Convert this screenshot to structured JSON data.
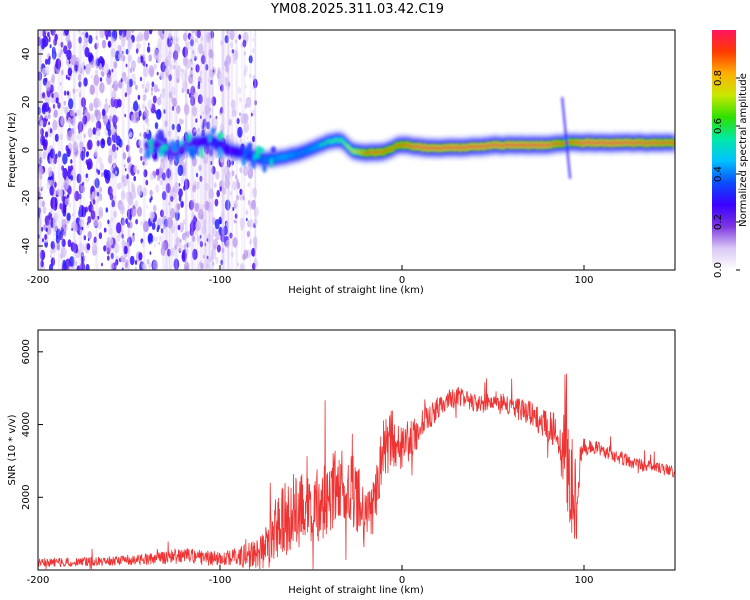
{
  "title": "YM08.2025.311.03.42.C19",
  "chart_data": [
    {
      "type": "heatmap",
      "xlabel": "Height of straight line (km)",
      "ylabel": "Frequency (Hz)",
      "xlim": [
        -200,
        150
      ],
      "ylim": [
        -50,
        50
      ],
      "x_ticks": [
        -200,
        -100,
        0,
        100
      ],
      "y_ticks": [
        -40,
        -20,
        0,
        20,
        40
      ],
      "colorbar": {
        "label": "Normalized spectral amplitude",
        "range": [
          0,
          1
        ],
        "ticks": [
          0.0,
          0.2,
          0.4,
          0.6,
          0.8
        ],
        "tick_labels": [
          "0.0",
          "0.2",
          "0.4",
          "0.6",
          "0.8"
        ],
        "colors": [
          "#ffffff",
          "#d9c8f5",
          "#7d35e0",
          "#3a00ff",
          "#0b4dff",
          "#00c2ff",
          "#00e8a8",
          "#2fe000",
          "#c8e800",
          "#ffb000",
          "#ff3a00",
          "#ff1560"
        ]
      },
      "noise_region_x": [
        -200,
        -80
      ],
      "ridge": {
        "x": [
          -135,
          -125,
          -115,
          -105,
          -95,
          -85,
          -75,
          -65,
          -55,
          -45,
          -38,
          -33,
          -28,
          -22,
          -17,
          -12,
          -7,
          -2,
          3,
          10,
          20,
          35,
          50,
          65,
          80,
          90,
          100,
          120,
          150
        ],
        "freq": [
          2,
          -1,
          3,
          4,
          0,
          -2,
          -4,
          -3,
          -1,
          2,
          4,
          4,
          0,
          -1,
          -1,
          -1,
          0,
          2,
          2,
          1,
          1,
          1,
          2,
          2,
          2,
          3,
          3,
          3,
          3
        ],
        "amplitude": [
          0.35,
          0.3,
          0.35,
          0.4,
          0.35,
          0.45,
          0.55,
          0.6,
          0.55,
          0.6,
          0.65,
          0.65,
          0.75,
          0.85,
          0.95,
          0.95,
          0.9,
          0.9,
          0.95,
          1.0,
          1.0,
          1.0,
          1.0,
          1.0,
          1.0,
          0.9,
          1.0,
          1.0,
          0.95
        ]
      },
      "spike_x": 88,
      "spike_freq_range": [
        -12,
        22
      ]
    },
    {
      "type": "line",
      "xlabel": "Height of straight line (km)",
      "ylabel": "SNR (10 * v/v)",
      "xlim": [
        -200,
        150
      ],
      "ylim": [
        0,
        6600
      ],
      "x_ticks": [
        -200,
        -100,
        0,
        100
      ],
      "y_ticks": [
        2000,
        4000,
        6000
      ],
      "color": "#ee3333",
      "series": [
        {
          "x": [
            -200,
            -180,
            -160,
            -140,
            -120,
            -100,
            -90,
            -80,
            -75,
            -70,
            -65,
            -60,
            -55,
            -50,
            -45,
            -40,
            -35,
            -30,
            -25,
            -20,
            -15,
            -10,
            -5,
            0,
            5,
            10,
            15,
            20,
            25,
            30,
            35,
            40,
            45,
            50,
            55,
            60,
            65,
            70,
            75,
            80,
            85,
            88,
            90,
            92,
            94,
            96,
            98,
            100,
            110,
            120,
            130,
            140,
            150
          ],
          "y": [
            200,
            220,
            250,
            300,
            400,
            300,
            350,
            450,
            600,
            1000,
            1400,
            1700,
            1700,
            1800,
            1800,
            2000,
            2300,
            2300,
            2000,
            1300,
            1800,
            3400,
            3600,
            3400,
            3600,
            3900,
            4200,
            4500,
            4700,
            4800,
            4700,
            4600,
            4600,
            4700,
            4600,
            4500,
            4400,
            4300,
            4100,
            4000,
            3800,
            3200,
            4400,
            1500,
            2800,
            1200,
            3200,
            3400,
            3300,
            3100,
            2900,
            2800,
            2700
          ],
          "noise": [
            120,
            120,
            130,
            150,
            220,
            200,
            280,
            400,
            600,
            900,
            1100,
            1100,
            1000,
            1100,
            1000,
            1100,
            1100,
            1000,
            1100,
            800,
            700,
            900,
            800,
            700,
            500,
            450,
            350,
            300,
            300,
            280,
            250,
            250,
            280,
            250,
            250,
            280,
            300,
            350,
            400,
            450,
            500,
            800,
            1600,
            1800,
            1400,
            1200,
            300,
            250,
            200,
            180,
            170,
            160,
            160
          ]
        }
      ]
    }
  ]
}
